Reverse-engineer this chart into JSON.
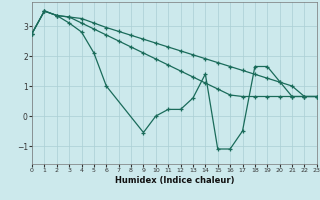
{
  "xlabel": "Humidex (Indice chaleur)",
  "background_color": "#cce9ec",
  "grid_color": "#aacfd4",
  "line_color": "#1a6b5a",
  "xlim": [
    0,
    23
  ],
  "ylim": [
    -1.6,
    3.8
  ],
  "yticks": [
    -1,
    0,
    1,
    2,
    3
  ],
  "xticks": [
    0,
    1,
    2,
    3,
    4,
    5,
    6,
    7,
    8,
    9,
    10,
    11,
    12,
    13,
    14,
    15,
    16,
    17,
    18,
    19,
    20,
    21,
    22,
    23
  ],
  "line1_x": [
    0,
    1,
    2,
    3,
    4,
    5,
    6,
    7,
    8,
    9,
    10,
    11,
    12,
    13,
    14,
    15,
    16,
    17,
    18,
    19,
    20,
    21,
    22,
    23
  ],
  "line1_y": [
    2.75,
    3.5,
    3.35,
    3.3,
    3.25,
    3.1,
    2.95,
    2.82,
    2.69,
    2.56,
    2.43,
    2.3,
    2.17,
    2.04,
    1.91,
    1.78,
    1.65,
    1.52,
    1.39,
    1.26,
    1.13,
    1.0,
    0.65,
    0.65
  ],
  "line2_x": [
    0,
    1,
    2,
    3,
    4,
    5,
    6,
    7,
    8,
    9,
    10,
    11,
    12,
    13,
    14,
    15,
    16,
    17,
    18,
    19,
    20,
    21,
    22,
    23
  ],
  "line2_y": [
    2.75,
    3.5,
    3.35,
    3.3,
    3.1,
    2.9,
    2.7,
    2.5,
    2.3,
    2.1,
    1.9,
    1.7,
    1.5,
    1.3,
    1.1,
    0.9,
    0.7,
    0.65,
    0.65,
    0.65,
    0.65,
    0.65,
    0.65,
    0.65
  ],
  "line3_x": [
    0,
    1,
    2,
    3,
    4,
    5,
    6,
    9,
    10,
    11,
    12,
    13,
    14,
    15,
    16,
    17,
    18,
    19,
    20,
    21,
    22,
    23
  ],
  "line3_y": [
    2.75,
    3.5,
    3.35,
    3.1,
    2.8,
    2.1,
    1.0,
    -0.55,
    -0.0,
    0.22,
    0.22,
    0.6,
    1.4,
    -1.1,
    -1.1,
    -0.5,
    1.65,
    1.65,
    1.15,
    0.65,
    0.65,
    0.65
  ]
}
